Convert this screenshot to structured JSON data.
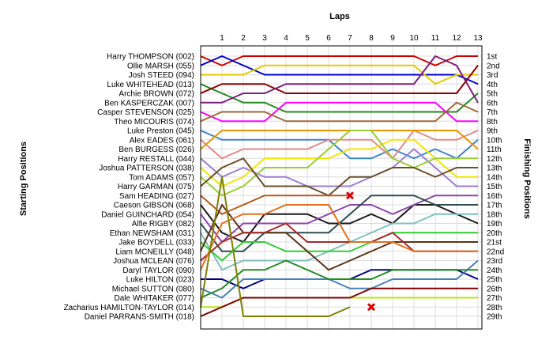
{
  "chart_data": {
    "type": "line",
    "title": "",
    "xlabel": "Laps",
    "ylabel_left": "Starting Positions",
    "ylabel_right": "Finishing Positions",
    "laps": [
      1,
      2,
      3,
      4,
      5,
      6,
      7,
      8,
      9,
      10,
      11,
      12,
      13
    ],
    "x_ticks": [
      "1",
      "2",
      "3",
      "4",
      "5",
      "6",
      "7",
      "8",
      "9",
      "10",
      "11",
      "12",
      "13"
    ],
    "finish_labels": [
      "1st",
      "2nd",
      "3rd",
      "4th",
      "5th",
      "6th",
      "7th",
      "8th",
      "9th",
      "10th",
      "11th",
      "12th",
      "13th",
      "14th",
      "15th",
      "16th",
      "17th",
      "18th",
      "19th",
      "20th",
      "21st",
      "22nd",
      "23rd",
      "24th",
      "25th",
      "26th",
      "27th",
      "28th",
      "29th"
    ],
    "grid": true,
    "series": [
      {
        "name": "Harry THOMPSON (002)",
        "color": "#cc0000",
        "positions": [
          1,
          2,
          1,
          1,
          1,
          1,
          1,
          1,
          1,
          1,
          1,
          2,
          1,
          1
        ]
      },
      {
        "name": "Ollie MARSH (055)",
        "color": "#0000cc",
        "positions": [
          2,
          1,
          2,
          3,
          3,
          3,
          3,
          3,
          3,
          3,
          3,
          3,
          3,
          4
        ]
      },
      {
        "name": "Josh STEED (094)",
        "color": "#e6c800",
        "positions": [
          3,
          3,
          3,
          2,
          2,
          2,
          2,
          2,
          2,
          2,
          2,
          4,
          3,
          3
        ]
      },
      {
        "name": "Luke WHITEHEAD (013)",
        "color": "#228b22",
        "positions": [
          4,
          5,
          6,
          6,
          7,
          7,
          7,
          7,
          7,
          7,
          7,
          7,
          7,
          5
        ]
      },
      {
        "name": "Archie BROWN (072)",
        "color": "#8b0000",
        "positions": [
          5,
          4,
          4,
          4,
          5,
          5,
          5,
          5,
          5,
          5,
          5,
          5,
          5,
          2
        ]
      },
      {
        "name": "Ben KASPERCZAK (007)",
        "color": "#7b1f7b",
        "positions": [
          6,
          6,
          5,
          5,
          4,
          4,
          4,
          4,
          4,
          4,
          4,
          1,
          2,
          6
        ]
      },
      {
        "name": "Casper STEVENSON (025)",
        "color": "#ff00ff",
        "positions": [
          7,
          8,
          8,
          8,
          6,
          6,
          6,
          6,
          6,
          6,
          6,
          6,
          8,
          8
        ]
      },
      {
        "name": "Theo MICOURIS (074)",
        "color": "#a06a3c",
        "positions": [
          8,
          7,
          7,
          7,
          8,
          8,
          8,
          8,
          8,
          8,
          8,
          8,
          6,
          7
        ]
      },
      {
        "name": "Luke Preston (045)",
        "color": "#3d85c6",
        "positions": [
          9,
          10,
          10,
          10,
          10,
          10,
          10,
          12,
          12,
          11,
          12,
          11,
          12,
          10
        ]
      },
      {
        "name": "Alex EADES (061)",
        "color": "#e08a8a",
        "positions": [
          10,
          12,
          11,
          11,
          11,
          11,
          10,
          10,
          10,
          12,
          9,
          10,
          10,
          9
        ]
      },
      {
        "name": "Ben BURGESS (026)",
        "color": "#e59500",
        "positions": [
          11,
          9,
          9,
          9,
          9,
          9,
          9,
          9,
          9,
          9,
          9,
          9,
          9,
          11
        ]
      },
      {
        "name": "Harry RESTALL (044)",
        "color": "#9a7fcf",
        "positions": [
          12,
          14,
          13,
          14,
          14,
          15,
          15,
          15,
          14,
          13,
          11,
          13,
          15,
          15
        ]
      },
      {
        "name": "Joshua PATTERSON (038)",
        "color": "#f2e600",
        "positions": [
          13,
          15,
          14,
          12,
          12,
          12,
          12,
          11,
          11,
          10,
          10,
          12,
          14,
          14
        ]
      },
      {
        "name": "Tom ADAMS (057)",
        "color": "#9acd32",
        "positions": [
          14,
          16,
          15,
          13,
          13,
          13,
          11,
          9,
          9,
          12,
          13,
          12,
          12,
          12
        ]
      },
      {
        "name": "Harry GARMAN (075)",
        "color": "#6b4f2a",
        "positions": [
          15,
          13,
          12,
          15,
          15,
          15,
          16,
          14,
          14,
          13,
          13,
          14,
          13,
          13
        ]
      },
      {
        "name": "Sam HEADING (027)",
        "color": "#b35c1e",
        "positions": [
          16,
          18,
          17,
          16,
          16,
          16,
          16,
          16
        ]
      },
      {
        "name": "Caeson GIBSON (068)",
        "color": "#1a1a1a",
        "positions": [
          17,
          20,
          21,
          18,
          18,
          18,
          19,
          19,
          18,
          19,
          17,
          17,
          18,
          19
        ]
      },
      {
        "name": "Daniel GUINCHARD (054)",
        "color": "#8e44ad",
        "positions": [
          18,
          21,
          19,
          19,
          19,
          19,
          18,
          17,
          17,
          18,
          17,
          16,
          16,
          16
        ]
      },
      {
        "name": "Alfie RIGBY (082)",
        "color": "#2f4f4f",
        "positions": [
          19,
          22,
          22,
          20,
          20,
          20,
          20,
          18,
          16,
          16,
          16,
          17,
          17,
          17
        ]
      },
      {
        "name": "Ethan NEWSHAM (031)",
        "color": "#7fbfbf",
        "positions": [
          20,
          24,
          23,
          23,
          23,
          23,
          22,
          21,
          20,
          19,
          19,
          18,
          18,
          18
        ]
      },
      {
        "name": "Jake BOYDELL (033)",
        "color": "#32cd32",
        "positions": [
          21,
          23,
          21,
          21,
          22,
          22,
          22,
          22,
          21,
          20,
          20,
          20,
          20,
          20
        ]
      },
      {
        "name": "Liam MCNEILLY (048)",
        "color": "#5c3317",
        "positions": [
          22,
          17,
          20,
          20,
          20,
          22,
          24,
          23,
          22,
          21,
          21,
          21,
          21,
          21
        ]
      },
      {
        "name": "Joshua MCLEAN (076)",
        "color": "#a52a2a",
        "positions": [
          23,
          21,
          20,
          20,
          19,
          21,
          21,
          21,
          21,
          20,
          22,
          22,
          22,
          22
        ]
      },
      {
        "name": "Daryl TAYLOR (090)",
        "color": "#e07020",
        "positions": [
          24,
          19,
          18,
          18,
          17,
          17,
          17,
          21,
          21,
          21,
          22,
          22,
          22,
          22
        ]
      },
      {
        "name": "Luke HILTON (023)",
        "color": "#000080",
        "positions": [
          25,
          25,
          26,
          25,
          25,
          25,
          25,
          25,
          24,
          24,
          24,
          24,
          24,
          25
        ]
      },
      {
        "name": "Michael SUTTON (080)",
        "color": "#4682b4",
        "positions": [
          26,
          27,
          25,
          25,
          25,
          25,
          25,
          26,
          26,
          25,
          25,
          25,
          25,
          23
        ]
      },
      {
        "name": "Dale WHITAKER (077)",
        "color": "#228b22",
        "positions": [
          27,
          26,
          24,
          24,
          23,
          24,
          25,
          25,
          25,
          24,
          24,
          24,
          24,
          24
        ]
      },
      {
        "name": "Zacharius HAMILTON-TAYLOR (014)",
        "color": "#b5e61d",
        "positions": [
          28,
          28,
          27,
          27,
          27,
          27,
          27,
          27,
          27,
          27,
          27,
          27,
          27,
          27
        ]
      },
      {
        "name": "Daniel PARRANS-SMITH (018)",
        "color": "#800000",
        "positions": [
          29,
          28,
          27,
          27,
          27,
          27,
          27,
          27,
          26,
          26,
          26,
          26,
          26,
          26
        ]
      },
      {
        "name": "Zacharius HAMILTON-TAYLOR (014) b",
        "color": "#808000",
        "positions": [
          28,
          14,
          29,
          29,
          29,
          29,
          29,
          28
        ]
      }
    ],
    "retirements": [
      {
        "lap": 7,
        "position": 16
      },
      {
        "lap": 8,
        "position": 28
      }
    ]
  }
}
